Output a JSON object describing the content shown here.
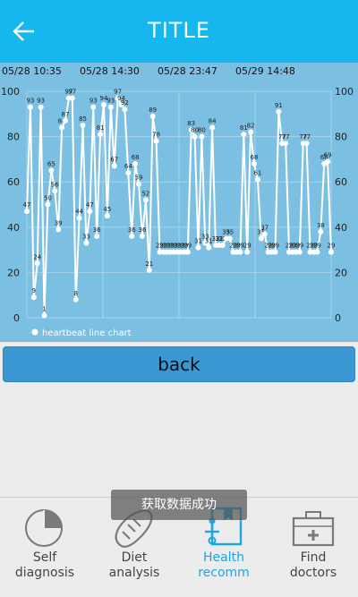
{
  "header": {
    "title": "TITLE",
    "back_icon": "arrow-left-icon",
    "color": "#16b7ee"
  },
  "chart_data": {
    "type": "line",
    "x_tick_labels": [
      "05/28 10:35",
      "05/28 14:30",
      "05/28 23:47",
      "05/29 14:48"
    ],
    "y_ticks": [
      0,
      20,
      40,
      60,
      80,
      100
    ],
    "ylim": [
      0,
      100
    ],
    "grid": true,
    "legend_position": "bottom-left",
    "background": "#7bc0e3",
    "series": [
      {
        "name": "heartbeat line chart",
        "color": "#ffffff",
        "values": [
          47,
          93,
          9,
          24,
          93,
          1,
          50,
          65,
          56,
          39,
          84,
          87,
          97,
          97,
          8,
          44,
          85,
          33,
          47,
          93,
          36,
          81,
          94,
          45,
          93,
          67,
          97,
          94,
          92,
          64,
          36,
          68,
          59,
          36,
          52,
          21,
          89,
          78,
          29,
          29,
          29,
          29,
          29,
          29,
          29,
          29,
          29,
          83,
          80,
          31,
          80,
          33,
          31,
          84,
          32,
          32,
          32,
          35,
          35,
          29,
          29,
          29,
          81,
          29,
          82,
          68,
          61,
          35,
          37,
          29,
          29,
          29,
          91,
          77,
          77,
          29,
          29,
          29,
          29,
          77,
          77,
          29,
          29,
          29,
          38,
          68,
          69,
          29
        ]
      }
    ]
  },
  "back_button": {
    "label": "back"
  },
  "toast": {
    "text": "获取数据成功"
  },
  "tabs": [
    {
      "label": "Self\ndiagnosis",
      "icon": "pie-chart-icon",
      "active": false
    },
    {
      "label": "Diet\nanalysis",
      "icon": "bread-icon",
      "active": false
    },
    {
      "label": "Health\nrecomm",
      "icon": "health-book-icon",
      "active": true
    },
    {
      "label": "Find\ndoctors",
      "icon": "medical-kit-icon",
      "active": false
    }
  ],
  "colors": {
    "active_tab": "#1aa6e8",
    "inactive_tab": "#444444",
    "back_button": "#3a97d1"
  }
}
